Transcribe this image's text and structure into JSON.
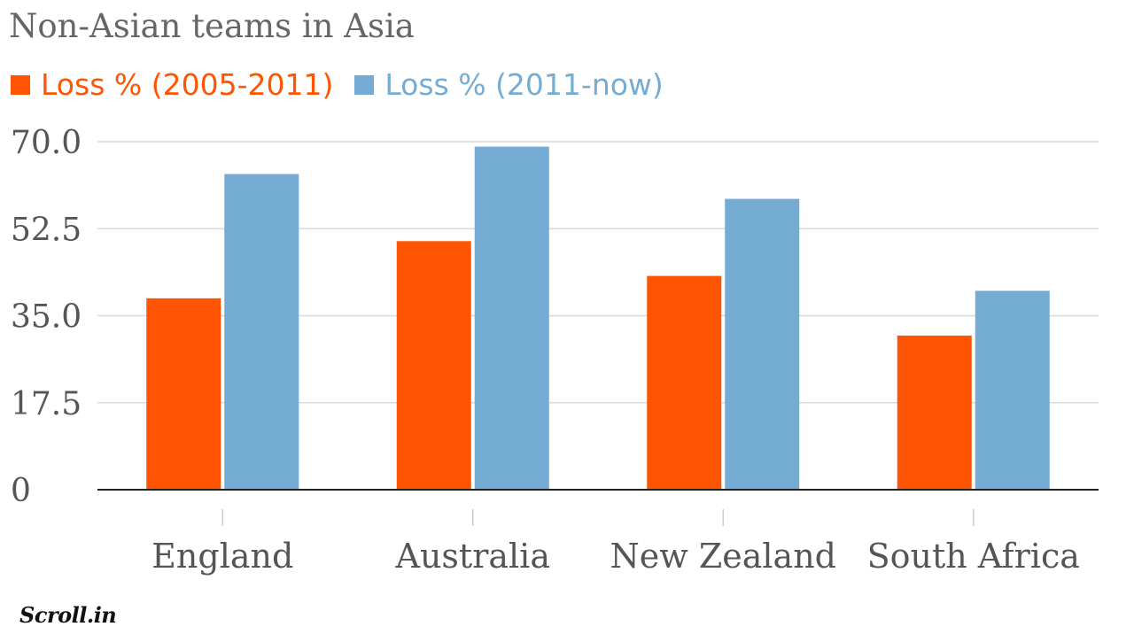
{
  "chart_data": {
    "type": "bar",
    "title": "Non-Asian teams in Asia",
    "categories": [
      "England",
      "Australia",
      "New Zealand",
      "South Africa"
    ],
    "series": [
      {
        "name": "Loss % (2005-2011)",
        "color": "#ff5503",
        "values": [
          38.5,
          50.0,
          43.0,
          31.0
        ]
      },
      {
        "name": "Loss % (2011-now)",
        "color": "#74acd3",
        "values": [
          63.5,
          69.0,
          58.5,
          40.0
        ]
      }
    ],
    "y_ticks": [
      "0",
      "17.5",
      "35.0",
      "52.5",
      "70.0"
    ],
    "ylim": [
      0,
      70
    ],
    "xlabel": "",
    "ylabel": "",
    "grid": true,
    "legend_position": "top-left"
  },
  "branding": {
    "logo_text": "Scroll.in"
  },
  "colors": {
    "title": "#666666",
    "axis_text": "#555555",
    "grid": "#d9d9d9",
    "baseline": "#222222"
  }
}
